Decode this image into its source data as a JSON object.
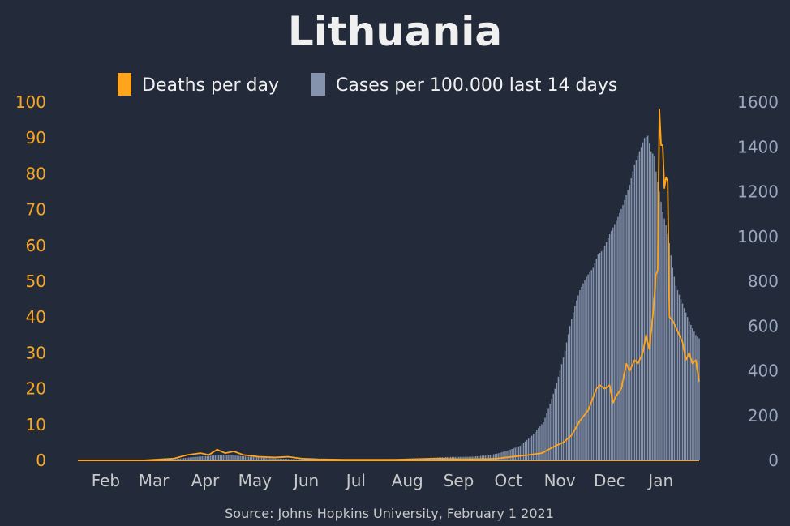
{
  "colors": {
    "background": "#232b3b",
    "deaths": "#ffa51c",
    "cases": "#8593ad",
    "title": "#f0f0f0",
    "month_label": "#c8c8c8",
    "left_tick": "#f5a623",
    "right_tick": "#9aa7bd",
    "source": "#c8c8c8"
  },
  "chart_data": {
    "type": "bar+line",
    "title": "Lithuania",
    "source": "Source: Johns Hopkins University, February 1 2021",
    "legend": {
      "placement": "top-center",
      "entries": [
        "Deaths per day",
        "Cases per 100.000 last 14 days"
      ]
    },
    "x_axis": {
      "start": "2020-01-22",
      "end": "2021-01-31",
      "tick_labels": [
        "Feb",
        "Mar",
        "Apr",
        "May",
        "Jun",
        "Jul",
        "Aug",
        "Sep",
        "Oct",
        "Nov",
        "Dec",
        "Jan"
      ],
      "tick_dates": [
        "2020-02-01",
        "2020-03-01",
        "2020-04-01",
        "2020-05-01",
        "2020-06-01",
        "2020-07-01",
        "2020-08-01",
        "2020-09-01",
        "2020-10-01",
        "2020-11-01",
        "2020-12-01",
        "2021-01-01"
      ]
    },
    "y_left": {
      "label": "",
      "range": [
        0,
        100
      ],
      "ticks": [
        0,
        10,
        20,
        30,
        40,
        50,
        60,
        70,
        80,
        90,
        100
      ]
    },
    "y_right": {
      "label": "",
      "range": [
        0,
        1600
      ],
      "ticks": [
        0,
        200,
        400,
        600,
        800,
        1000,
        1200,
        1400,
        1600
      ]
    },
    "series": [
      {
        "name": "Deaths per day",
        "type": "line",
        "axis": "left",
        "points": [
          [
            "2020-01-22",
            0
          ],
          [
            "2020-03-01",
            0
          ],
          [
            "2020-03-20",
            0.5
          ],
          [
            "2020-03-28",
            1.5
          ],
          [
            "2020-04-05",
            2
          ],
          [
            "2020-04-10",
            1.5
          ],
          [
            "2020-04-15",
            3
          ],
          [
            "2020-04-20",
            2
          ],
          [
            "2020-04-25",
            2.5
          ],
          [
            "2020-05-01",
            1.5
          ],
          [
            "2020-05-10",
            1
          ],
          [
            "2020-05-20",
            0.8
          ],
          [
            "2020-05-28",
            1
          ],
          [
            "2020-06-05",
            0.5
          ],
          [
            "2020-06-15",
            0.3
          ],
          [
            "2020-07-01",
            0.2
          ],
          [
            "2020-08-01",
            0.2
          ],
          [
            "2020-08-25",
            0.5
          ],
          [
            "2020-09-10",
            0.3
          ],
          [
            "2020-09-25",
            0.4
          ],
          [
            "2020-10-01",
            0.5
          ],
          [
            "2020-10-10",
            1
          ],
          [
            "2020-10-20",
            1.5
          ],
          [
            "2020-10-28",
            2
          ],
          [
            "2020-11-01",
            3
          ],
          [
            "2020-11-05",
            4
          ],
          [
            "2020-11-10",
            5
          ],
          [
            "2020-11-15",
            7
          ],
          [
            "2020-11-20",
            11
          ],
          [
            "2020-11-25",
            14
          ],
          [
            "2020-11-30",
            20
          ],
          [
            "2020-12-02",
            21
          ],
          [
            "2020-12-05",
            20
          ],
          [
            "2020-12-08",
            21
          ],
          [
            "2020-12-10",
            16
          ],
          [
            "2020-12-12",
            18
          ],
          [
            "2020-12-15",
            20
          ],
          [
            "2020-12-18",
            27
          ],
          [
            "2020-12-20",
            25
          ],
          [
            "2020-12-23",
            28
          ],
          [
            "2020-12-25",
            27
          ],
          [
            "2020-12-28",
            30
          ],
          [
            "2020-12-30",
            35
          ],
          [
            "2021-01-01",
            31
          ],
          [
            "2021-01-03",
            40
          ],
          [
            "2021-01-05",
            52
          ],
          [
            "2021-01-06",
            53
          ],
          [
            "2021-01-07",
            98
          ],
          [
            "2021-01-08",
            88
          ],
          [
            "2021-01-09",
            88
          ],
          [
            "2021-01-10",
            76
          ],
          [
            "2021-01-11",
            79
          ],
          [
            "2021-01-12",
            78
          ],
          [
            "2021-01-13",
            40
          ],
          [
            "2021-01-15",
            39
          ],
          [
            "2021-01-17",
            37
          ],
          [
            "2021-01-19",
            35
          ],
          [
            "2021-01-21",
            33
          ],
          [
            "2021-01-23",
            28
          ],
          [
            "2021-01-25",
            30
          ],
          [
            "2021-01-27",
            27
          ],
          [
            "2021-01-29",
            28
          ],
          [
            "2021-01-31",
            22
          ]
        ]
      },
      {
        "name": "Cases per 100.000 last 14 days",
        "type": "bar",
        "axis": "right",
        "points": [
          [
            "2020-01-22",
            0
          ],
          [
            "2020-03-10",
            0
          ],
          [
            "2020-03-20",
            5
          ],
          [
            "2020-04-01",
            15
          ],
          [
            "2020-04-10",
            20
          ],
          [
            "2020-04-20",
            25
          ],
          [
            "2020-05-01",
            18
          ],
          [
            "2020-05-15",
            10
          ],
          [
            "2020-06-01",
            5
          ],
          [
            "2020-06-15",
            4
          ],
          [
            "2020-07-01",
            3
          ],
          [
            "2020-07-15",
            4
          ],
          [
            "2020-08-01",
            6
          ],
          [
            "2020-08-15",
            8
          ],
          [
            "2020-09-01",
            15
          ],
          [
            "2020-09-15",
            16
          ],
          [
            "2020-09-25",
            22
          ],
          [
            "2020-10-01",
            30
          ],
          [
            "2020-10-08",
            45
          ],
          [
            "2020-10-15",
            65
          ],
          [
            "2020-10-22",
            110
          ],
          [
            "2020-10-29",
            170
          ],
          [
            "2020-11-01",
            230
          ],
          [
            "2020-11-05",
            320
          ],
          [
            "2020-11-08",
            400
          ],
          [
            "2020-11-11",
            490
          ],
          [
            "2020-11-14",
            600
          ],
          [
            "2020-11-17",
            690
          ],
          [
            "2020-11-20",
            760
          ],
          [
            "2020-11-24",
            820
          ],
          [
            "2020-11-28",
            860
          ],
          [
            "2020-12-01",
            920
          ],
          [
            "2020-12-04",
            940
          ],
          [
            "2020-12-08",
            1010
          ],
          [
            "2020-12-12",
            1070
          ],
          [
            "2020-12-16",
            1140
          ],
          [
            "2020-12-20",
            1230
          ],
          [
            "2020-12-23",
            1320
          ],
          [
            "2020-12-26",
            1380
          ],
          [
            "2020-12-29",
            1440
          ],
          [
            "2020-12-31",
            1450
          ],
          [
            "2021-01-02",
            1380
          ],
          [
            "2021-01-04",
            1360
          ],
          [
            "2021-01-05",
            1290
          ],
          [
            "2021-01-07",
            1200
          ],
          [
            "2021-01-09",
            1110
          ],
          [
            "2021-01-11",
            1050
          ],
          [
            "2021-01-13",
            970
          ],
          [
            "2021-01-15",
            860
          ],
          [
            "2021-01-17",
            780
          ],
          [
            "2021-01-19",
            740
          ],
          [
            "2021-01-21",
            700
          ],
          [
            "2021-01-23",
            660
          ],
          [
            "2021-01-25",
            620
          ],
          [
            "2021-01-27",
            590
          ],
          [
            "2021-01-29",
            560
          ],
          [
            "2021-01-31",
            545
          ]
        ]
      }
    ]
  }
}
